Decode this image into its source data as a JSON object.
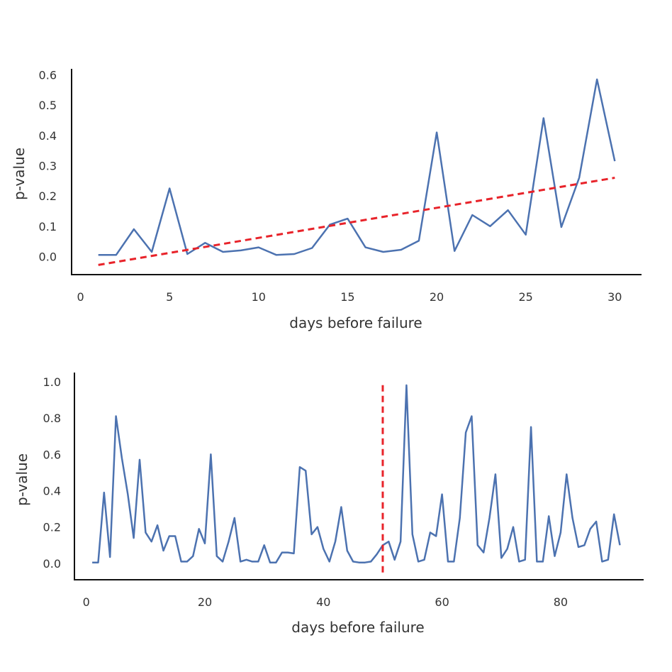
{
  "chart_data": [
    {
      "type": "line",
      "xlabel": "days before failure",
      "ylabel": "p-value",
      "xlim": [
        -0.5,
        31.5
      ],
      "ylim": [
        -0.06,
        0.62
      ],
      "xticks": [
        0,
        5,
        10,
        15,
        20,
        25,
        30
      ],
      "yticks": [
        0.0,
        0.1,
        0.2,
        0.3,
        0.4,
        0.5,
        0.6
      ],
      "tick_labels_x": [
        "0",
        "5",
        "10",
        "15",
        "20",
        "25",
        "30"
      ],
      "tick_labels_y": [
        "0.0",
        "0.1",
        "0.2",
        "0.3",
        "0.4",
        "0.5",
        "0.6"
      ],
      "grid": false,
      "series": [
        {
          "color": "#4c72b0",
          "x": [
            1,
            2,
            3,
            4,
            5,
            6,
            7,
            8,
            9,
            10,
            11,
            12,
            13,
            14,
            15,
            16,
            17,
            18,
            19,
            20,
            21,
            22,
            23,
            24,
            25,
            26,
            27,
            28,
            29,
            30
          ],
          "y": [
            0.005,
            0.005,
            0.09,
            0.015,
            0.225,
            0.008,
            0.045,
            0.015,
            0.02,
            0.03,
            0.005,
            0.008,
            0.028,
            0.105,
            0.125,
            0.03,
            0.015,
            0.022,
            0.052,
            0.41,
            0.018,
            0.137,
            0.1,
            0.153,
            0.072,
            0.457,
            0.097,
            0.26,
            0.585,
            0.315
          ]
        }
      ],
      "trend_line": {
        "color": "#e8232a",
        "style": "dashed",
        "x": [
          1,
          30
        ],
        "y": [
          -0.028,
          0.26
        ]
      }
    },
    {
      "type": "line",
      "xlabel": "days before failure",
      "ylabel": "p-value",
      "xlim": [
        -2,
        94
      ],
      "ylim": [
        -0.09,
        1.05
      ],
      "xticks": [
        0,
        20,
        40,
        60,
        80
      ],
      "yticks": [
        0.0,
        0.2,
        0.4,
        0.6,
        0.8,
        1.0
      ],
      "tick_labels_x": [
        "0",
        "20",
        "40",
        "60",
        "80"
      ],
      "tick_labels_y": [
        "0.0",
        "0.2",
        "0.4",
        "0.6",
        "0.8",
        "1.0"
      ],
      "grid": false,
      "series": [
        {
          "color": "#4c72b0",
          "x": [
            1,
            2,
            3,
            4,
            5,
            6,
            7,
            8,
            9,
            10,
            11,
            12,
            13,
            14,
            15,
            16,
            17,
            18,
            19,
            20,
            21,
            22,
            23,
            24,
            25,
            26,
            27,
            28,
            29,
            30,
            31,
            32,
            33,
            34,
            35,
            36,
            37,
            38,
            39,
            40,
            41,
            42,
            43,
            44,
            45,
            46,
            47,
            48,
            49,
            50,
            51,
            52,
            53,
            54,
            55,
            56,
            57,
            58,
            59,
            60,
            61,
            62,
            63,
            64,
            65,
            66,
            67,
            68,
            69,
            70,
            71,
            72,
            73,
            74,
            75,
            76,
            77,
            78,
            79,
            80,
            81,
            82,
            83,
            84,
            85,
            86,
            87,
            88,
            89,
            90
          ],
          "y": [
            0.005,
            0.005,
            0.39,
            0.035,
            0.81,
            0.58,
            0.38,
            0.14,
            0.57,
            0.17,
            0.12,
            0.21,
            0.07,
            0.15,
            0.15,
            0.01,
            0.01,
            0.04,
            0.19,
            0.11,
            0.6,
            0.04,
            0.01,
            0.12,
            0.25,
            0.01,
            0.02,
            0.01,
            0.01,
            0.1,
            0.005,
            0.005,
            0.06,
            0.06,
            0.055,
            0.53,
            0.51,
            0.16,
            0.2,
            0.08,
            0.01,
            0.12,
            0.31,
            0.07,
            0.01,
            0.005,
            0.005,
            0.01,
            0.05,
            0.1,
            0.12,
            0.02,
            0.12,
            0.98,
            0.16,
            0.01,
            0.02,
            0.17,
            0.15,
            0.38,
            0.01,
            0.01,
            0.25,
            0.72,
            0.81,
            0.1,
            0.06,
            0.25,
            0.49,
            0.03,
            0.08,
            0.2,
            0.01,
            0.02,
            0.75,
            0.01,
            0.01,
            0.26,
            0.04,
            0.17,
            0.49,
            0.25,
            0.09,
            0.1,
            0.19,
            0.23,
            0.01,
            0.02,
            0.27,
            0.1
          ]
        }
      ],
      "marker_line": {
        "color": "#e8232a",
        "style": "dashed",
        "x": 50,
        "y": [
          -0.05,
          1.0
        ]
      }
    }
  ]
}
